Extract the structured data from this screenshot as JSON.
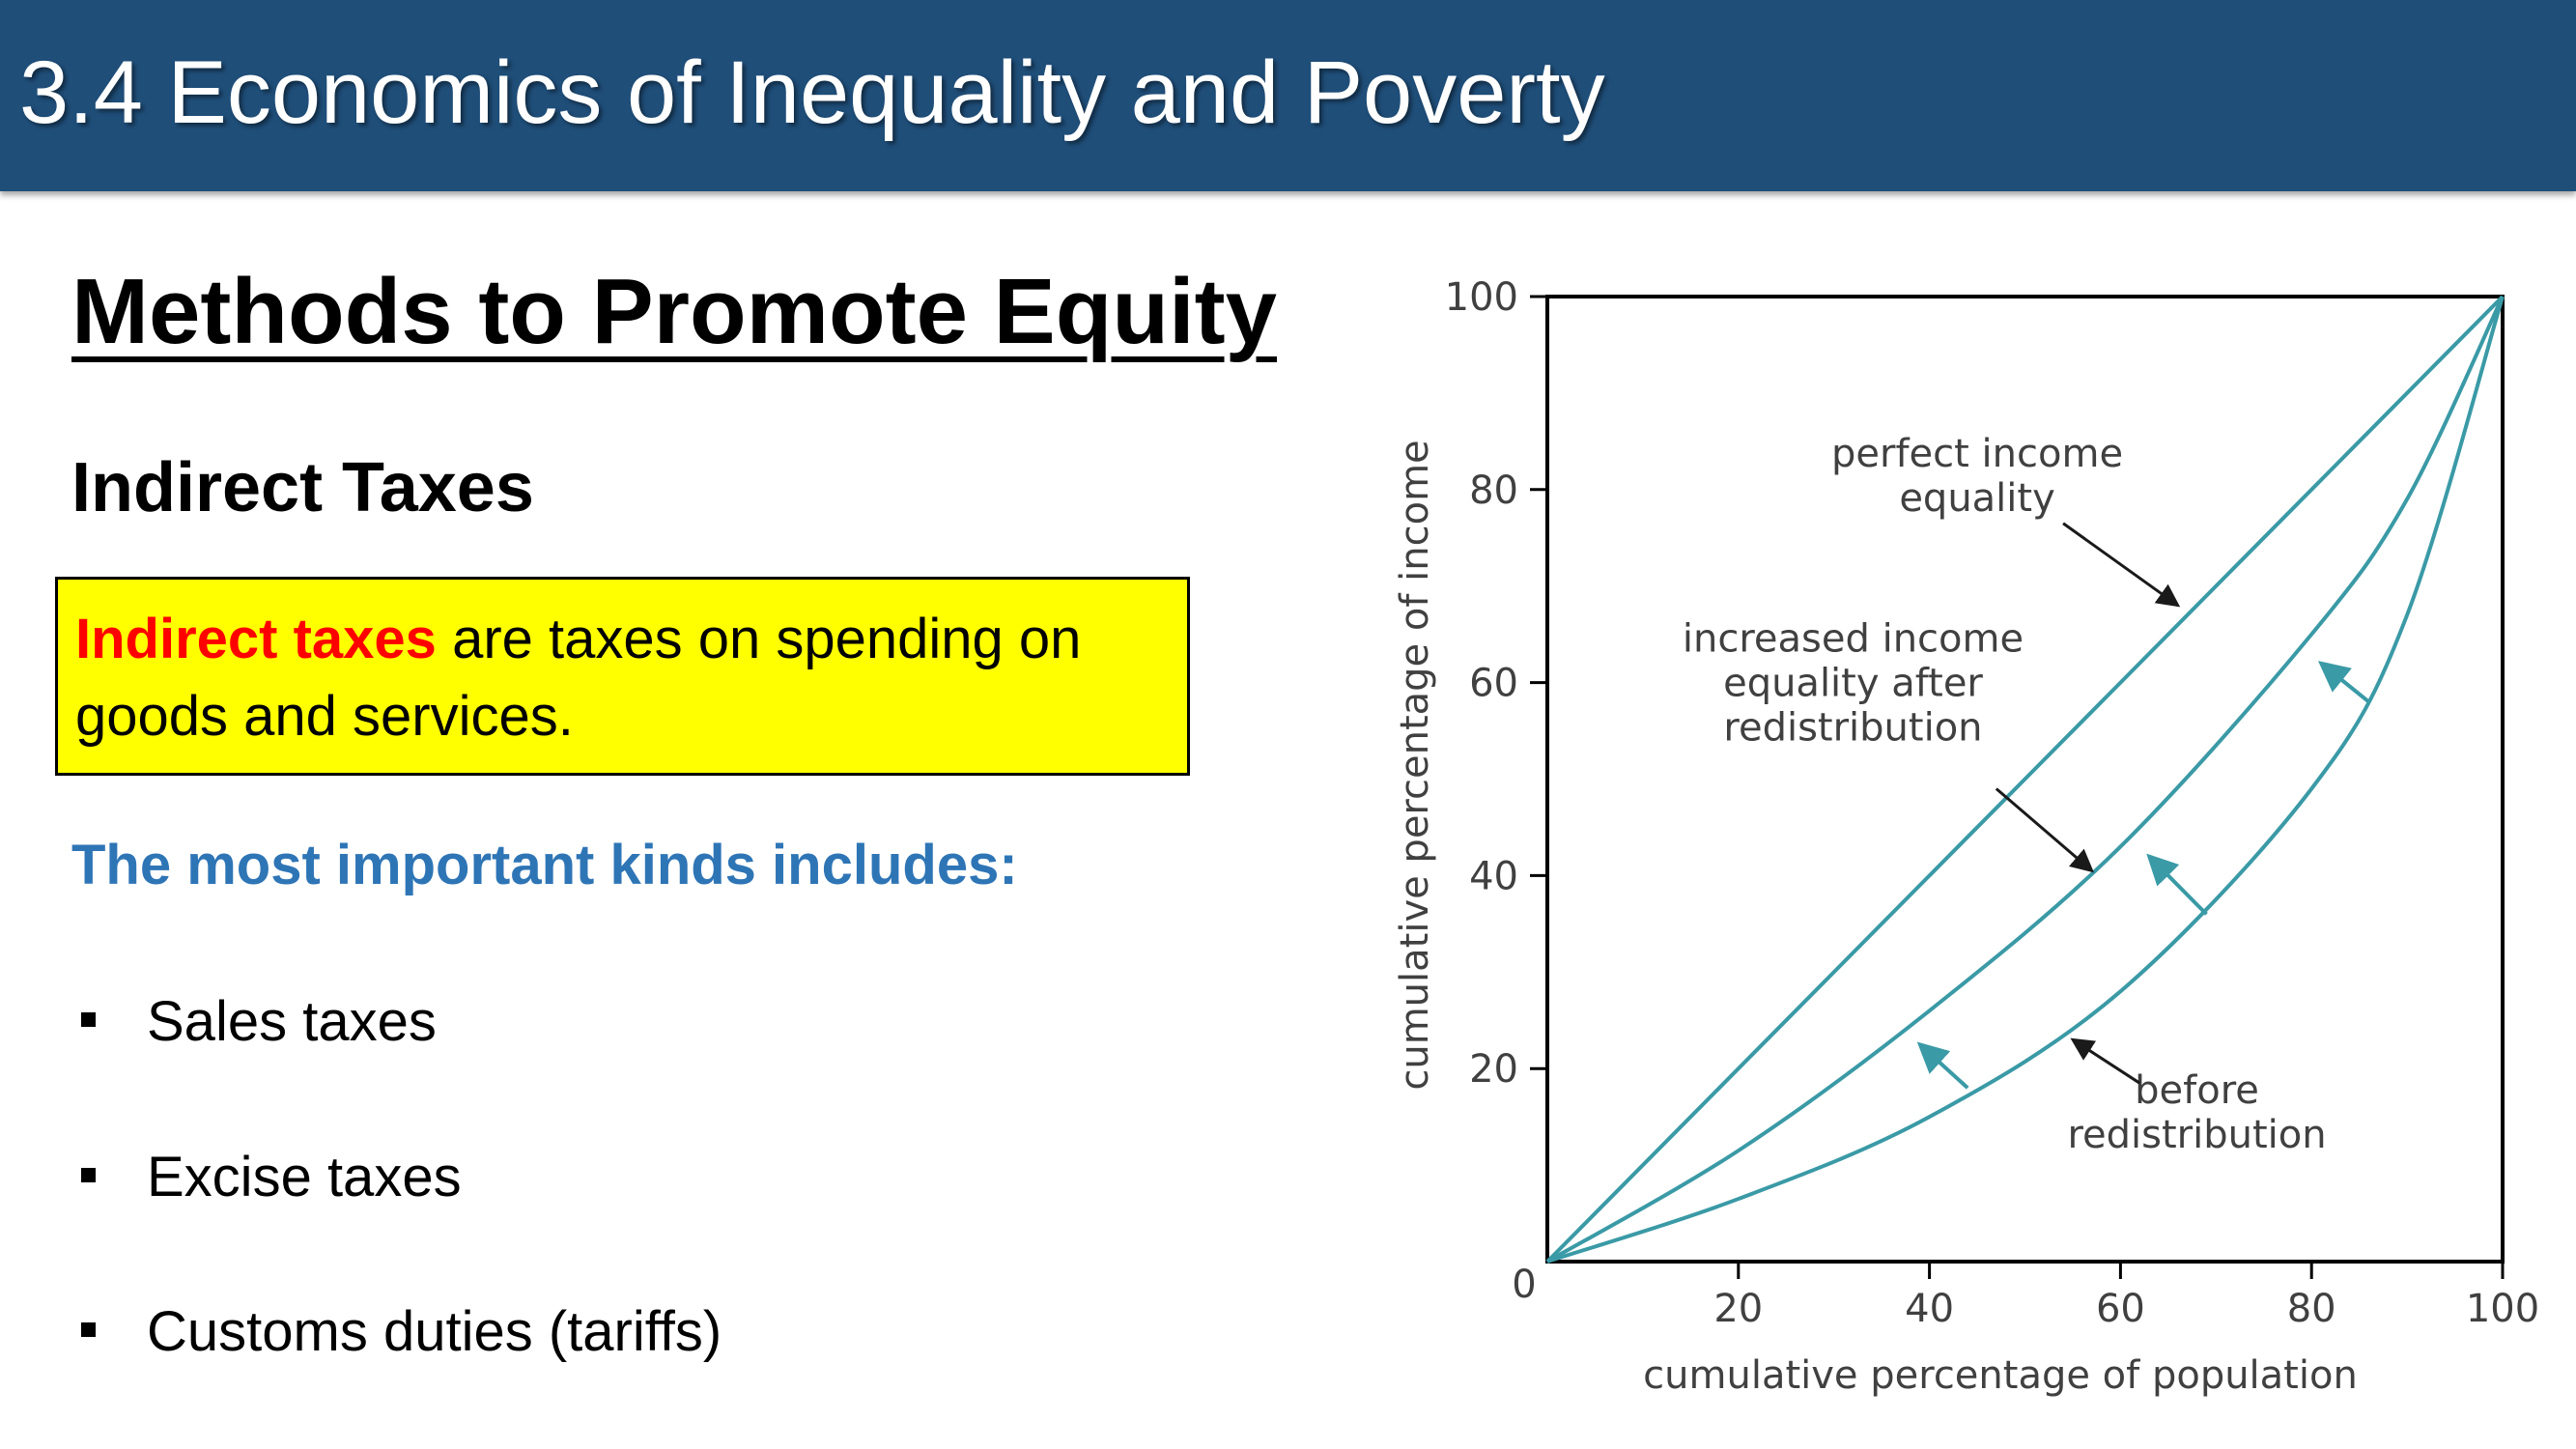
{
  "header": {
    "title": "3.4 Economics of Inequality and Poverty"
  },
  "main": {
    "title": "Methods to Promote Equity",
    "subheading": "Indirect Taxes",
    "definition": {
      "term": "Indirect taxes",
      "text": " are taxes on spending on goods and services."
    },
    "kinds_heading": "The most important kinds includes:",
    "kinds": [
      "Sales taxes",
      "Excise taxes",
      "Customs duties (tariffs)"
    ]
  },
  "chart_data": {
    "type": "line",
    "title": "",
    "xlabel": "cumulative percentage of population",
    "ylabel": "cumulative percentage of income",
    "xlim": [
      0,
      100
    ],
    "ylim": [
      0,
      100
    ],
    "xticks": [
      20,
      40,
      60,
      80,
      100
    ],
    "yticks": [
      20,
      40,
      60,
      80,
      100
    ],
    "origin_label": "0",
    "grid": false,
    "series": [
      {
        "x": [
          0,
          20,
          40,
          60,
          80,
          100
        ],
        "y": [
          0,
          20,
          40,
          60,
          80,
          100
        ]
      },
      {
        "x": [
          0,
          20,
          40,
          60,
          80,
          90,
          100
        ],
        "y": [
          0,
          11.5,
          26,
          43,
          65,
          79,
          100
        ]
      },
      {
        "x": [
          0,
          20,
          40,
          60,
          80,
          90,
          100
        ],
        "y": [
          0,
          6.5,
          15,
          28,
          49,
          67,
          100
        ]
      }
    ],
    "annotations": [
      {
        "label_lines": [
          "perfect income",
          "equality"
        ],
        "label_at": [
          45,
          81.5
        ],
        "arrow_from": [
          54,
          76.5
        ],
        "arrow_to": [
          66,
          68
        ]
      },
      {
        "label_lines": [
          "increased income",
          "equality after",
          "redistribution"
        ],
        "label_at": [
          32,
          60
        ],
        "arrow_from": [
          47,
          49
        ],
        "arrow_to": [
          57,
          40.5
        ]
      },
      {
        "label_lines": [
          "before",
          "redistribution"
        ],
        "label_at": [
          68,
          15.5
        ],
        "arrow_from": [
          62,
          18.5
        ],
        "arrow_to": [
          55,
          23
        ]
      }
    ],
    "shift_arrows": [
      {
        "from": [
          44,
          18
        ],
        "to": [
          39,
          22.5
        ]
      },
      {
        "from": [
          69,
          36
        ],
        "to": [
          63,
          42
        ]
      },
      {
        "from": [
          86,
          58
        ],
        "to": [
          81,
          62
        ]
      }
    ],
    "colors": {
      "curve": "#3a9aa6",
      "axis": "#000000",
      "arrow": "#1a1a1a",
      "shift_arrow": "#3a9aa6"
    }
  }
}
